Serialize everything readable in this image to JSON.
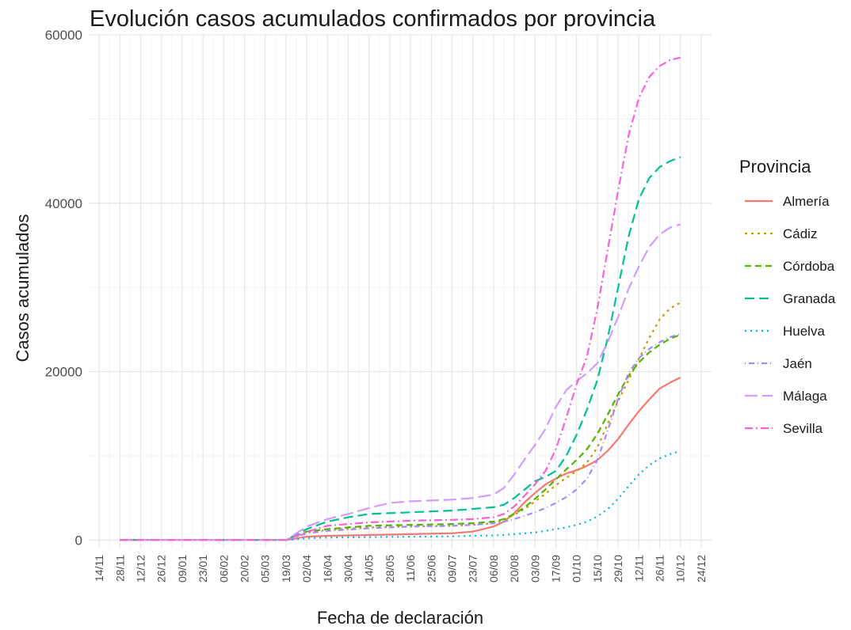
{
  "chart_data": {
    "type": "line",
    "title": "Evolución casos acumulados confirmados por provincia",
    "xlabel": "Fecha de declaración",
    "ylabel": "Casos acumulados",
    "ylim": [
      -1000,
      60000
    ],
    "y_ticks": [
      0,
      20000,
      40000,
      60000
    ],
    "y_tick_labels": [
      "0",
      "20000",
      "40000",
      "60000"
    ],
    "x_tick_labels": [
      "14/11",
      "28/11",
      "12/12",
      "26/12",
      "09/01",
      "23/01",
      "06/02",
      "20/02",
      "05/03",
      "19/03",
      "02/04",
      "16/04",
      "30/04",
      "14/05",
      "28/05",
      "11/06",
      "25/06",
      "09/07",
      "23/07",
      "06/08",
      "20/08",
      "03/09",
      "17/09",
      "01/10",
      "15/10",
      "29/10",
      "12/11",
      "26/11",
      "10/12",
      "24/12"
    ],
    "x_tick_labels_display": [
      "14/11",
      "28/11",
      "12/12",
      "26/12",
      "09/01",
      "23/01",
      "06/02",
      "20/02",
      "05/03",
      "19/03",
      "02/04",
      "16/04",
      "30/04",
      "14/05",
      "28/05",
      "11/06",
      "25/06",
      "09/07",
      "23/07",
      "06/08",
      "20/08",
      "03/09",
      "17/09",
      "01/10",
      "15/10",
      "29/10",
      "12/11",
      "26/11",
      "10/12",
      "24/12"
    ],
    "x_index_range": [
      -0.5,
      29.5
    ],
    "grid": true,
    "legend_title": "Provincia",
    "legend_position": "right",
    "series": [
      {
        "name": "Almería",
        "color": "#F8766D",
        "dash": "solid",
        "points": [
          [
            1.0,
            0
          ],
          [
            8.0,
            0
          ],
          [
            9.0,
            0
          ],
          [
            10.0,
            400
          ],
          [
            11.0,
            500
          ],
          [
            13.0,
            600
          ],
          [
            15.0,
            700
          ],
          [
            17.0,
            800
          ],
          [
            18.0,
            1000
          ],
          [
            19.0,
            1600
          ],
          [
            19.5,
            2200
          ],
          [
            20.0,
            3200
          ],
          [
            20.5,
            4500
          ],
          [
            21.0,
            5600
          ],
          [
            21.5,
            6600
          ],
          [
            22.0,
            7300
          ],
          [
            22.5,
            7900
          ],
          [
            23.0,
            8300
          ],
          [
            23.5,
            8800
          ],
          [
            24.0,
            9500
          ],
          [
            24.5,
            10600
          ],
          [
            25.0,
            12000
          ],
          [
            25.5,
            13700
          ],
          [
            26.0,
            15300
          ],
          [
            26.5,
            16700
          ],
          [
            27.0,
            18000
          ],
          [
            27.5,
            18700
          ],
          [
            28.0,
            19300
          ]
        ]
      },
      {
        "name": "Cádiz",
        "color": "#C49A00",
        "dash": "3,5",
        "points": [
          [
            1.0,
            0
          ],
          [
            8.0,
            0
          ],
          [
            9.0,
            0
          ],
          [
            10.0,
            900
          ],
          [
            11.0,
            1200
          ],
          [
            13.0,
            1500
          ],
          [
            15.0,
            1600
          ],
          [
            17.0,
            1700
          ],
          [
            18.0,
            1800
          ],
          [
            19.0,
            2000
          ],
          [
            19.5,
            2400
          ],
          [
            20.0,
            3000
          ],
          [
            20.5,
            3700
          ],
          [
            21.0,
            4600
          ],
          [
            21.5,
            5500
          ],
          [
            22.0,
            6500
          ],
          [
            22.5,
            7400
          ],
          [
            23.0,
            8200
          ],
          [
            23.5,
            9200
          ],
          [
            24.0,
            11000
          ],
          [
            24.5,
            13800
          ],
          [
            25.0,
            16500
          ],
          [
            25.5,
            19000
          ],
          [
            26.0,
            21500
          ],
          [
            26.5,
            24000
          ],
          [
            27.0,
            26200
          ],
          [
            27.5,
            27500
          ],
          [
            28.0,
            28200
          ]
        ]
      },
      {
        "name": "Córdoba",
        "color": "#53B400",
        "dash": "8,5",
        "points": [
          [
            1.0,
            0
          ],
          [
            8.0,
            0
          ],
          [
            9.0,
            0
          ],
          [
            10.0,
            1000
          ],
          [
            11.0,
            1300
          ],
          [
            13.0,
            1700
          ],
          [
            15.0,
            1800
          ],
          [
            17.0,
            1900
          ],
          [
            18.0,
            2000
          ],
          [
            19.0,
            2200
          ],
          [
            19.5,
            2500
          ],
          [
            20.0,
            3100
          ],
          [
            20.5,
            3900
          ],
          [
            21.0,
            4900
          ],
          [
            21.5,
            6000
          ],
          [
            22.0,
            7200
          ],
          [
            22.5,
            8400
          ],
          [
            23.0,
            9500
          ],
          [
            23.5,
            10800
          ],
          [
            24.0,
            12600
          ],
          [
            24.5,
            14900
          ],
          [
            25.0,
            17300
          ],
          [
            25.5,
            19500
          ],
          [
            26.0,
            21100
          ],
          [
            26.5,
            22300
          ],
          [
            27.0,
            23200
          ],
          [
            27.5,
            23900
          ],
          [
            28.0,
            24400
          ]
        ]
      },
      {
        "name": "Granada",
        "color": "#00C094",
        "dash": "12,6",
        "points": [
          [
            1.0,
            0
          ],
          [
            8.0,
            0
          ],
          [
            9.0,
            0
          ],
          [
            10.0,
            1300
          ],
          [
            11.0,
            2200
          ],
          [
            12.0,
            2700
          ],
          [
            13.0,
            3100
          ],
          [
            15.0,
            3300
          ],
          [
            17.0,
            3500
          ],
          [
            18.0,
            3700
          ],
          [
            19.0,
            3900
          ],
          [
            19.5,
            4200
          ],
          [
            20.0,
            5000
          ],
          [
            20.5,
            6000
          ],
          [
            21.0,
            7000
          ],
          [
            21.5,
            7500
          ],
          [
            22.0,
            8200
          ],
          [
            22.5,
            10000
          ],
          [
            23.0,
            12500
          ],
          [
            23.5,
            15500
          ],
          [
            24.0,
            19000
          ],
          [
            24.5,
            24000
          ],
          [
            25.0,
            30000
          ],
          [
            25.5,
            36000
          ],
          [
            26.0,
            40500
          ],
          [
            26.5,
            43000
          ],
          [
            27.0,
            44300
          ],
          [
            27.5,
            45000
          ],
          [
            28.0,
            45500
          ]
        ]
      },
      {
        "name": "Huelva",
        "color": "#00B6EB",
        "dash": "2,5",
        "points": [
          [
            1.0,
            0
          ],
          [
            8.0,
            0
          ],
          [
            9.0,
            0
          ],
          [
            10.0,
            200
          ],
          [
            11.0,
            300
          ],
          [
            13.0,
            350
          ],
          [
            15.0,
            400
          ],
          [
            17.0,
            450
          ],
          [
            18.0,
            500
          ],
          [
            19.0,
            550
          ],
          [
            19.5,
            600
          ],
          [
            20.0,
            700
          ],
          [
            20.5,
            800
          ],
          [
            21.0,
            900
          ],
          [
            21.5,
            1100
          ],
          [
            22.0,
            1300
          ],
          [
            22.5,
            1500
          ],
          [
            23.0,
            1800
          ],
          [
            23.5,
            2200
          ],
          [
            24.0,
            2800
          ],
          [
            24.5,
            3700
          ],
          [
            25.0,
            4900
          ],
          [
            25.5,
            6400
          ],
          [
            26.0,
            7800
          ],
          [
            26.5,
            8900
          ],
          [
            27.0,
            9700
          ],
          [
            27.5,
            10200
          ],
          [
            28.0,
            10600
          ]
        ]
      },
      {
        "name": "Jaén",
        "color": "#A58AFF",
        "dash": "1,4,7,4",
        "points": [
          [
            1.0,
            0
          ],
          [
            8.0,
            0
          ],
          [
            9.0,
            0
          ],
          [
            10.0,
            800
          ],
          [
            11.0,
            1100
          ],
          [
            13.0,
            1400
          ],
          [
            15.0,
            1600
          ],
          [
            17.0,
            1700
          ],
          [
            18.0,
            1800
          ],
          [
            19.0,
            2000
          ],
          [
            19.5,
            2200
          ],
          [
            20.0,
            2500
          ],
          [
            20.5,
            2900
          ],
          [
            21.0,
            3300
          ],
          [
            21.5,
            3800
          ],
          [
            22.0,
            4400
          ],
          [
            22.5,
            5100
          ],
          [
            23.0,
            6000
          ],
          [
            23.5,
            7300
          ],
          [
            24.0,
            9500
          ],
          [
            24.5,
            13000
          ],
          [
            25.0,
            16800
          ],
          [
            25.5,
            19800
          ],
          [
            26.0,
            21600
          ],
          [
            26.5,
            22700
          ],
          [
            27.0,
            23500
          ],
          [
            27.5,
            24100
          ],
          [
            28.0,
            24500
          ]
        ]
      },
      {
        "name": "Málaga",
        "color": "#D19BFF",
        "dash": "16,6",
        "points": [
          [
            1.0,
            0
          ],
          [
            8.0,
            0
          ],
          [
            9.0,
            0
          ],
          [
            10.0,
            1600
          ],
          [
            11.0,
            2500
          ],
          [
            12.0,
            3100
          ],
          [
            13.0,
            3800
          ],
          [
            14.0,
            4400
          ],
          [
            15.0,
            4600
          ],
          [
            17.0,
            4800
          ],
          [
            18.0,
            5000
          ],
          [
            19.0,
            5400
          ],
          [
            19.5,
            6200
          ],
          [
            20.0,
            7800
          ],
          [
            20.5,
            9600
          ],
          [
            21.0,
            11300
          ],
          [
            21.5,
            13200
          ],
          [
            22.0,
            15800
          ],
          [
            22.5,
            17800
          ],
          [
            23.0,
            18900
          ],
          [
            23.5,
            19800
          ],
          [
            24.0,
            21000
          ],
          [
            24.5,
            23500
          ],
          [
            25.0,
            26500
          ],
          [
            25.5,
            29800
          ],
          [
            26.0,
            32500
          ],
          [
            26.5,
            34800
          ],
          [
            27.0,
            36300
          ],
          [
            27.5,
            37100
          ],
          [
            28.0,
            37500
          ]
        ]
      },
      {
        "name": "Sevilla",
        "color": "#FB61D7",
        "dash": "10,4,2,4",
        "points": [
          [
            1.0,
            0
          ],
          [
            8.0,
            0
          ],
          [
            9.0,
            0
          ],
          [
            10.0,
            1000
          ],
          [
            11.0,
            1700
          ],
          [
            13.0,
            2100
          ],
          [
            15.0,
            2300
          ],
          [
            17.0,
            2400
          ],
          [
            18.0,
            2500
          ],
          [
            19.0,
            2700
          ],
          [
            19.5,
            3100
          ],
          [
            20.0,
            4000
          ],
          [
            20.5,
            5300
          ],
          [
            21.0,
            6600
          ],
          [
            21.5,
            8200
          ],
          [
            22.0,
            10800
          ],
          [
            22.5,
            14500
          ],
          [
            23.0,
            18500
          ],
          [
            23.5,
            21800
          ],
          [
            24.0,
            27500
          ],
          [
            24.5,
            34500
          ],
          [
            25.0,
            41500
          ],
          [
            25.5,
            48000
          ],
          [
            26.0,
            52500
          ],
          [
            26.5,
            55000
          ],
          [
            27.0,
            56300
          ],
          [
            27.5,
            57000
          ],
          [
            28.0,
            57300
          ]
        ]
      }
    ]
  }
}
